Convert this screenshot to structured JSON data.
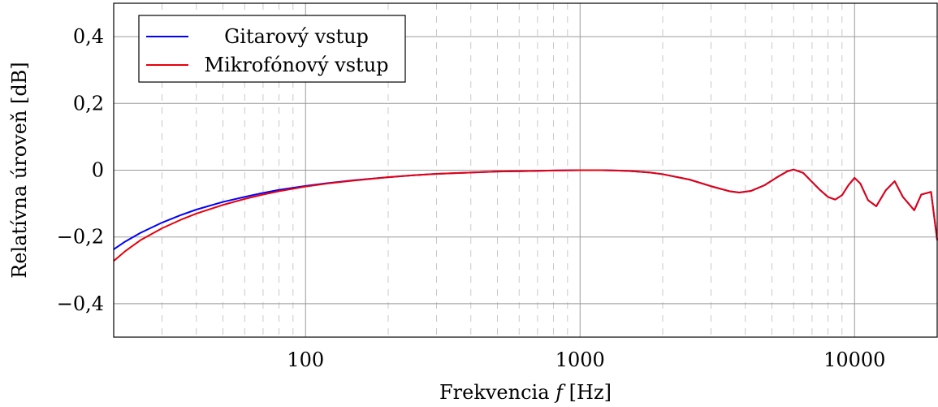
{
  "chart_data": {
    "type": "line",
    "xscale": "log",
    "xlim": [
      20,
      20000
    ],
    "ylim": [
      -0.5,
      0.5
    ],
    "grid": true,
    "legend_position": "top-left",
    "xlabel": "Frekvencia f [Hz]",
    "xlabel_parts": {
      "prefix": "Frekvencia ",
      "var": "f",
      "suffix": " [Hz]"
    },
    "ylabel": "Relatívna úroveň  [dB]",
    "x_ticks": [
      {
        "value": 100,
        "label": "100"
      },
      {
        "value": 1000,
        "label": "1000"
      },
      {
        "value": 10000,
        "label": "10000"
      }
    ],
    "y_ticks": [
      {
        "value": 0.4,
        "label": "0,4"
      },
      {
        "value": 0.2,
        "label": "0,2"
      },
      {
        "value": 0,
        "label": "0"
      },
      {
        "value": -0.2,
        "label": "−0,2"
      },
      {
        "value": -0.4,
        "label": "−0,4"
      }
    ],
    "series": [
      {
        "name": "Gitarový vstup",
        "color": "#0000ff",
        "points": [
          [
            20,
            -0.237
          ],
          [
            22,
            -0.214
          ],
          [
            25,
            -0.188
          ],
          [
            30,
            -0.157
          ],
          [
            35,
            -0.135
          ],
          [
            40,
            -0.118
          ],
          [
            50,
            -0.095
          ],
          [
            60,
            -0.08
          ],
          [
            70,
            -0.068
          ],
          [
            80,
            -0.059
          ],
          [
            100,
            -0.047
          ],
          [
            120,
            -0.039
          ],
          [
            150,
            -0.03
          ],
          [
            200,
            -0.021
          ],
          [
            250,
            -0.015
          ],
          [
            300,
            -0.011
          ],
          [
            400,
            -0.007
          ],
          [
            500,
            -0.004
          ],
          [
            600,
            -0.003
          ],
          [
            800,
            -0.001
          ],
          [
            1000,
            0.0
          ],
          [
            1200,
            0.0
          ],
          [
            1500,
            -0.002
          ],
          [
            1800,
            -0.007
          ],
          [
            2000,
            -0.012
          ],
          [
            2500,
            -0.028
          ],
          [
            3000,
            -0.048
          ],
          [
            3500,
            -0.063
          ],
          [
            3800,
            -0.067
          ],
          [
            4200,
            -0.062
          ],
          [
            4700,
            -0.045
          ],
          [
            5200,
            -0.022
          ],
          [
            5700,
            -0.003
          ],
          [
            6000,
            0.002
          ],
          [
            6500,
            -0.008
          ],
          [
            7000,
            -0.035
          ],
          [
            7500,
            -0.06
          ],
          [
            8000,
            -0.08
          ],
          [
            8500,
            -0.088
          ],
          [
            9000,
            -0.075
          ],
          [
            9500,
            -0.045
          ],
          [
            10000,
            -0.023
          ],
          [
            10500,
            -0.04
          ],
          [
            11200,
            -0.09
          ],
          [
            12000,
            -0.108
          ],
          [
            13000,
            -0.06
          ],
          [
            14000,
            -0.033
          ],
          [
            15000,
            -0.08
          ],
          [
            16500,
            -0.12
          ],
          [
            17500,
            -0.073
          ],
          [
            19000,
            -0.065
          ],
          [
            20000,
            -0.21
          ]
        ]
      },
      {
        "name": "Mikrofónový vstup",
        "color": "#e8000b",
        "points": [
          [
            20,
            -0.272
          ],
          [
            22,
            -0.243
          ],
          [
            25,
            -0.21
          ],
          [
            30,
            -0.174
          ],
          [
            35,
            -0.149
          ],
          [
            40,
            -0.13
          ],
          [
            50,
            -0.104
          ],
          [
            60,
            -0.086
          ],
          [
            70,
            -0.073
          ],
          [
            80,
            -0.063
          ],
          [
            100,
            -0.049
          ],
          [
            120,
            -0.04
          ],
          [
            150,
            -0.031
          ],
          [
            200,
            -0.021
          ],
          [
            250,
            -0.015
          ],
          [
            300,
            -0.011
          ],
          [
            400,
            -0.007
          ],
          [
            500,
            -0.004
          ],
          [
            600,
            -0.003
          ],
          [
            800,
            -0.001
          ],
          [
            1000,
            0.0
          ],
          [
            1200,
            0.0
          ],
          [
            1500,
            -0.002
          ],
          [
            1800,
            -0.007
          ],
          [
            2000,
            -0.012
          ],
          [
            2500,
            -0.028
          ],
          [
            3000,
            -0.048
          ],
          [
            3500,
            -0.063
          ],
          [
            3800,
            -0.067
          ],
          [
            4200,
            -0.062
          ],
          [
            4700,
            -0.045
          ],
          [
            5200,
            -0.022
          ],
          [
            5700,
            -0.003
          ],
          [
            6000,
            0.002
          ],
          [
            6500,
            -0.008
          ],
          [
            7000,
            -0.035
          ],
          [
            7500,
            -0.06
          ],
          [
            8000,
            -0.08
          ],
          [
            8500,
            -0.088
          ],
          [
            9000,
            -0.075
          ],
          [
            9500,
            -0.045
          ],
          [
            10000,
            -0.023
          ],
          [
            10500,
            -0.04
          ],
          [
            11200,
            -0.09
          ],
          [
            12000,
            -0.108
          ],
          [
            13000,
            -0.06
          ],
          [
            14000,
            -0.033
          ],
          [
            15000,
            -0.08
          ],
          [
            16500,
            -0.12
          ],
          [
            17500,
            -0.073
          ],
          [
            19000,
            -0.065
          ],
          [
            20000,
            -0.21
          ]
        ]
      }
    ]
  }
}
